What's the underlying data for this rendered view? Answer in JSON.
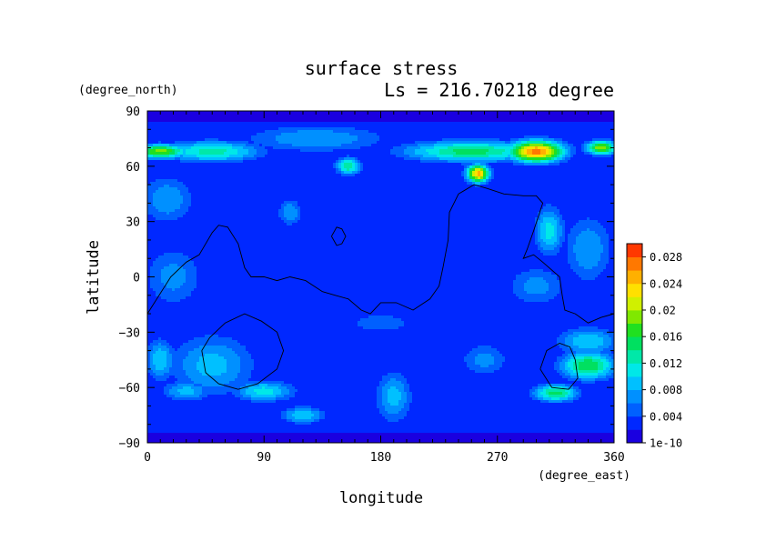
{
  "chart_data": {
    "type": "heatmap",
    "title": "surface stress",
    "subtitle": "Ls = 216.70218 degree",
    "xlabel": "longitude",
    "ylabel": "latitude",
    "x_units": "(degree_east)",
    "y_units": "(degree_north)",
    "xlim": [
      0,
      360
    ],
    "ylim": [
      -90,
      90
    ],
    "x_ticks": [
      0,
      90,
      180,
      270,
      360
    ],
    "y_ticks": [
      -90,
      -60,
      -30,
      0,
      30,
      60,
      90
    ],
    "x_tick_labels": [
      "0",
      "90",
      "180",
      "270",
      "360"
    ],
    "y_tick_labels": [
      "−90",
      "−60",
      "−30",
      "0",
      "30",
      "60",
      "90"
    ],
    "colorbar": {
      "levels": [
        0.0,
        0.002,
        0.004,
        0.006,
        0.008,
        0.01,
        0.012,
        0.014,
        0.016,
        0.018,
        0.02,
        0.022,
        0.024,
        0.026,
        0.028,
        0.03
      ],
      "tick_values": [
        0.0,
        0.004,
        0.008,
        0.012,
        0.016,
        0.02,
        0.024,
        0.028
      ],
      "tick_labels": [
        "1e-10",
        "0.004",
        "0.008",
        "0.012",
        "0.016",
        "0.02",
        "0.024",
        "0.028"
      ],
      "colors": [
        "#1a00e0",
        "#0028ff",
        "#0060ff",
        "#0090ff",
        "#00c0ff",
        "#00e8e8",
        "#00e8a8",
        "#00e060",
        "#20e020",
        "#80e800",
        "#d0f000",
        "#ffe000",
        "#ffb000",
        "#ff7800",
        "#ff3800"
      ]
    },
    "grid": false,
    "field_blobs": [
      {
        "lon": 10,
        "lat": 68,
        "rlon": 22,
        "rlat": 4,
        "v": 0.019
      },
      {
        "lon": 50,
        "lat": 68,
        "rlon": 40,
        "rlat": 6,
        "v": 0.013
      },
      {
        "lon": 130,
        "lat": 75,
        "rlon": 60,
        "rlat": 8,
        "v": 0.008
      },
      {
        "lon": 250,
        "lat": 68,
        "rlon": 55,
        "rlat": 6,
        "v": 0.015
      },
      {
        "lon": 300,
        "lat": 68,
        "rlon": 22,
        "rlat": 6,
        "v": 0.027
      },
      {
        "lon": 350,
        "lat": 70,
        "rlon": 12,
        "rlat": 4,
        "v": 0.02
      },
      {
        "lon": 155,
        "lat": 60,
        "rlon": 10,
        "rlat": 5,
        "v": 0.014
      },
      {
        "lon": 255,
        "lat": 56,
        "rlon": 9,
        "rlat": 5,
        "v": 0.025
      },
      {
        "lon": 15,
        "lat": 42,
        "rlon": 22,
        "rlat": 14,
        "v": 0.008
      },
      {
        "lon": 110,
        "lat": 35,
        "rlon": 10,
        "rlat": 8,
        "v": 0.008
      },
      {
        "lon": 310,
        "lat": 25,
        "rlon": 12,
        "rlat": 14,
        "v": 0.011
      },
      {
        "lon": 340,
        "lat": 15,
        "rlon": 20,
        "rlat": 20,
        "v": 0.008
      },
      {
        "lon": 20,
        "lat": 0,
        "rlon": 25,
        "rlat": 18,
        "v": 0.007
      },
      {
        "lon": 300,
        "lat": -5,
        "rlon": 25,
        "rlat": 12,
        "v": 0.007
      },
      {
        "lon": 340,
        "lat": -35,
        "rlon": 25,
        "rlat": 8,
        "v": 0.01
      },
      {
        "lon": 340,
        "lat": -48,
        "rlon": 22,
        "rlat": 8,
        "v": 0.016
      },
      {
        "lon": 315,
        "lat": -63,
        "rlon": 18,
        "rlat": 5,
        "v": 0.015
      },
      {
        "lon": 50,
        "lat": -48,
        "rlon": 35,
        "rlat": 18,
        "v": 0.009
      },
      {
        "lon": 90,
        "lat": -62,
        "rlon": 25,
        "rlat": 6,
        "v": 0.011
      },
      {
        "lon": 30,
        "lat": -62,
        "rlon": 20,
        "rlat": 6,
        "v": 0.009
      },
      {
        "lon": 120,
        "lat": -75,
        "rlon": 18,
        "rlat": 5,
        "v": 0.01
      },
      {
        "lon": 190,
        "lat": -65,
        "rlon": 15,
        "rlat": 15,
        "v": 0.009
      },
      {
        "lon": 10,
        "lat": -45,
        "rlon": 12,
        "rlat": 12,
        "v": 0.01
      },
      {
        "lon": 260,
        "lat": -45,
        "rlon": 20,
        "rlat": 10,
        "v": 0.007
      },
      {
        "lon": 180,
        "lat": -25,
        "rlon": 40,
        "rlat": 8,
        "v": 0.005
      },
      {
        "lon": 60,
        "lat": 20,
        "rlon": 25,
        "rlat": 15,
        "v": 0.004
      }
    ],
    "contours": [
      {
        "name": "equatorial-outline",
        "points": [
          [
            0,
            -20
          ],
          [
            18,
            0
          ],
          [
            30,
            8
          ],
          [
            40,
            12
          ],
          [
            50,
            24
          ],
          [
            55,
            28
          ],
          [
            62,
            27
          ],
          [
            70,
            18
          ],
          [
            75,
            5
          ],
          [
            80,
            0
          ],
          [
            90,
            0
          ],
          [
            100,
            -2
          ],
          [
            110,
            0
          ],
          [
            122,
            -2
          ],
          [
            135,
            -8
          ],
          [
            145,
            -10
          ],
          [
            155,
            -12
          ],
          [
            165,
            -18
          ],
          [
            172,
            -20
          ],
          [
            180,
            -14
          ],
          [
            192,
            -14
          ],
          [
            205,
            -18
          ],
          [
            218,
            -12
          ],
          [
            225,
            -5
          ],
          [
            228,
            5
          ],
          [
            232,
            20
          ],
          [
            233,
            35
          ],
          [
            240,
            45
          ],
          [
            252,
            50
          ],
          [
            262,
            48
          ],
          [
            275,
            45
          ],
          [
            290,
            44
          ],
          [
            300,
            44
          ],
          [
            305,
            40
          ],
          [
            298,
            25
          ],
          [
            293,
            15
          ],
          [
            290,
            10
          ],
          [
            298,
            12
          ],
          [
            305,
            8
          ],
          [
            318,
            0
          ],
          [
            320,
            -10
          ],
          [
            322,
            -18
          ],
          [
            330,
            -20
          ],
          [
            340,
            -25
          ],
          [
            350,
            -22
          ],
          [
            360,
            -20
          ]
        ]
      },
      {
        "name": "northern-spot",
        "points": [
          [
            142,
            22
          ],
          [
            146,
            27
          ],
          [
            150,
            26
          ],
          [
            153,
            22
          ],
          [
            150,
            18
          ],
          [
            146,
            17
          ],
          [
            142,
            22
          ]
        ]
      },
      {
        "name": "western-basin-outline",
        "points": [
          [
            42,
            -40
          ],
          [
            45,
            -52
          ],
          [
            55,
            -58
          ],
          [
            70,
            -61
          ],
          [
            85,
            -58
          ],
          [
            100,
            -50
          ],
          [
            105,
            -40
          ],
          [
            100,
            -30
          ],
          [
            88,
            -24
          ],
          [
            75,
            -20
          ],
          [
            60,
            -25
          ],
          [
            48,
            -33
          ],
          [
            42,
            -40
          ]
        ]
      },
      {
        "name": "eastern-basin-outline",
        "points": [
          [
            303,
            -50
          ],
          [
            308,
            -40
          ],
          [
            318,
            -36
          ],
          [
            326,
            -38
          ],
          [
            330,
            -45
          ],
          [
            332,
            -55
          ],
          [
            325,
            -61
          ],
          [
            312,
            -60
          ],
          [
            303,
            -50
          ]
        ]
      }
    ]
  }
}
